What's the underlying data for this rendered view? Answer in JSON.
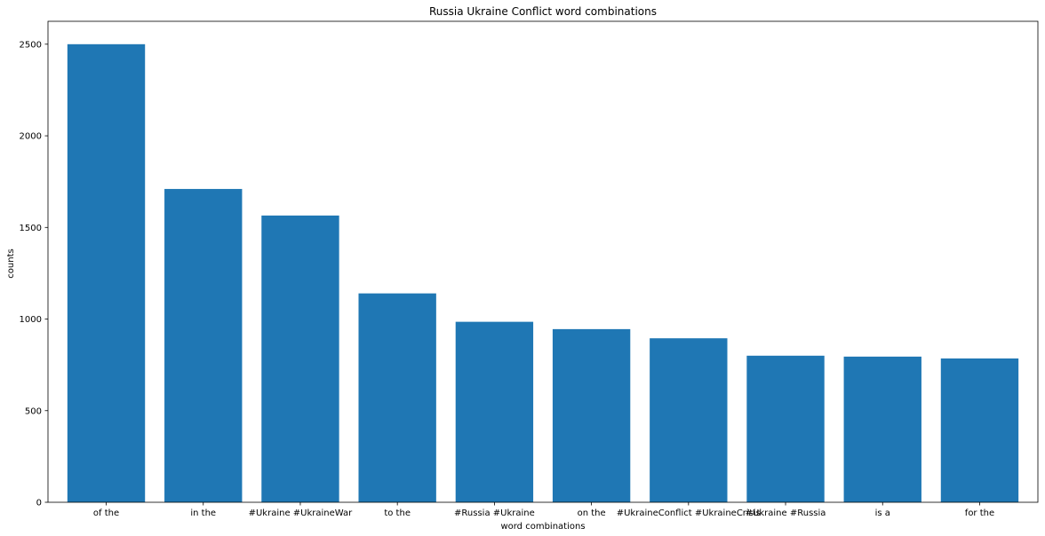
{
  "chart_data": {
    "type": "bar",
    "title": "Russia Ukraine Conflict word combinations",
    "xlabel": "word combinations",
    "ylabel": "counts",
    "categories": [
      "of the",
      "in the",
      "#Ukraine #UkraineWar",
      "to the",
      "#Russia #Ukraine",
      "on the",
      "#UkraineConflict #UkraineCrisis",
      "#Ukraine #Russia",
      "is a",
      "for the"
    ],
    "values": [
      2500,
      1710,
      1565,
      1140,
      985,
      945,
      895,
      800,
      795,
      785
    ],
    "ylim": [
      0,
      2625
    ],
    "yticks": [
      0,
      500,
      1000,
      1500,
      2000,
      2500
    ],
    "grid": false,
    "color": "#1f77b4"
  }
}
